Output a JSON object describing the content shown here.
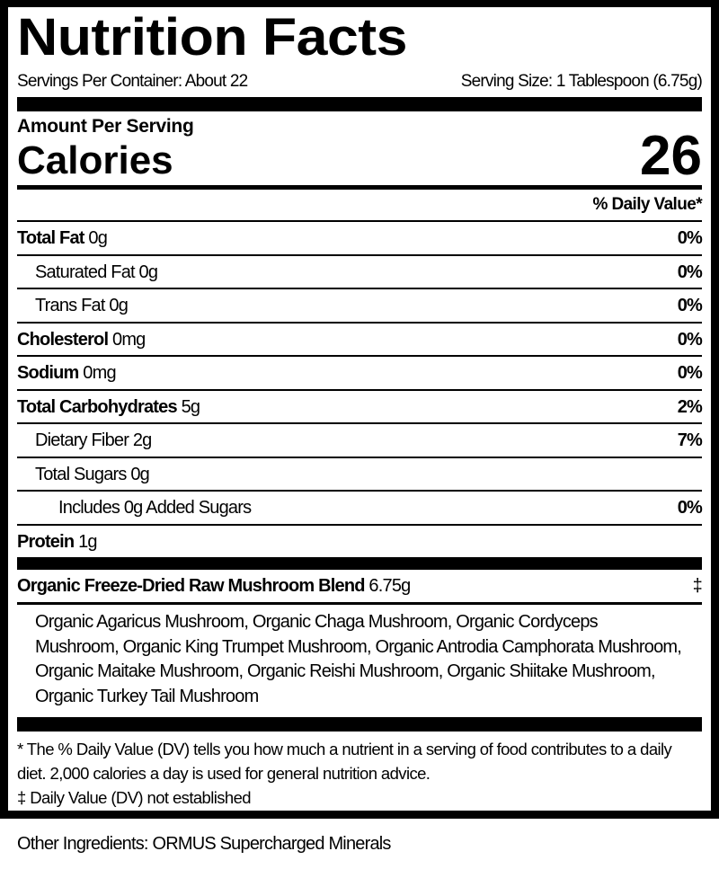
{
  "title": "Nutrition Facts",
  "servings_per_container": "Servings Per Container: About 22",
  "serving_size": "Serving Size: 1 Tablespoon (6.75g)",
  "amount_per_serving": "Amount Per Serving",
  "calories_label": "Calories",
  "calories_value": "26",
  "daily_value_header": "% Daily Value*",
  "nutrients": [
    {
      "name": "Total Fat",
      "amount": "0g",
      "dv": "0%"
    },
    {
      "name": "Saturated Fat 0g",
      "dv": "0%"
    },
    {
      "name": "Trans Fat 0g",
      "dv": "0%"
    },
    {
      "name": "Cholesterol",
      "amount": "0mg",
      "dv": "0%"
    },
    {
      "name": "Sodium",
      "amount": "0mg",
      "dv": "0%"
    },
    {
      "name": "Total Carbohydrates",
      "amount": "5g",
      "dv": "2%"
    },
    {
      "name": "Dietary Fiber 2g",
      "dv": "7%"
    },
    {
      "name": "Total Sugars 0g",
      "dv": ""
    },
    {
      "name": "Includes 0g Added Sugars",
      "dv": "0%"
    },
    {
      "name": "Protein",
      "amount": "1g",
      "dv": ""
    }
  ],
  "blend": {
    "name": "Organic Freeze-Dried Raw Mushroom Blend",
    "amount": "6.75g",
    "dv": "‡",
    "ingredients": "Organic Agaricus Mushroom, Organic Chaga Mushroom, Organic Cordyceps Mushroom, Organic King Trumpet Mushroom, Organic Antrodia Camphorata Mushroom, Organic Maitake Mushroom, Organic Reishi Mushroom, Organic Shiitake Mushroom, Organic Turkey Tail Mushroom"
  },
  "footnote_dv": "* The % Daily Value (DV) tells you how much a nutrient in a serving of food contributes to a daily diet. 2,000 calories a day is used for general nutrition advice.",
  "footnote_not_established": "‡ Daily Value (DV) not established",
  "other_ingredients": "Other Ingredients: ORMUS Supercharged Minerals"
}
